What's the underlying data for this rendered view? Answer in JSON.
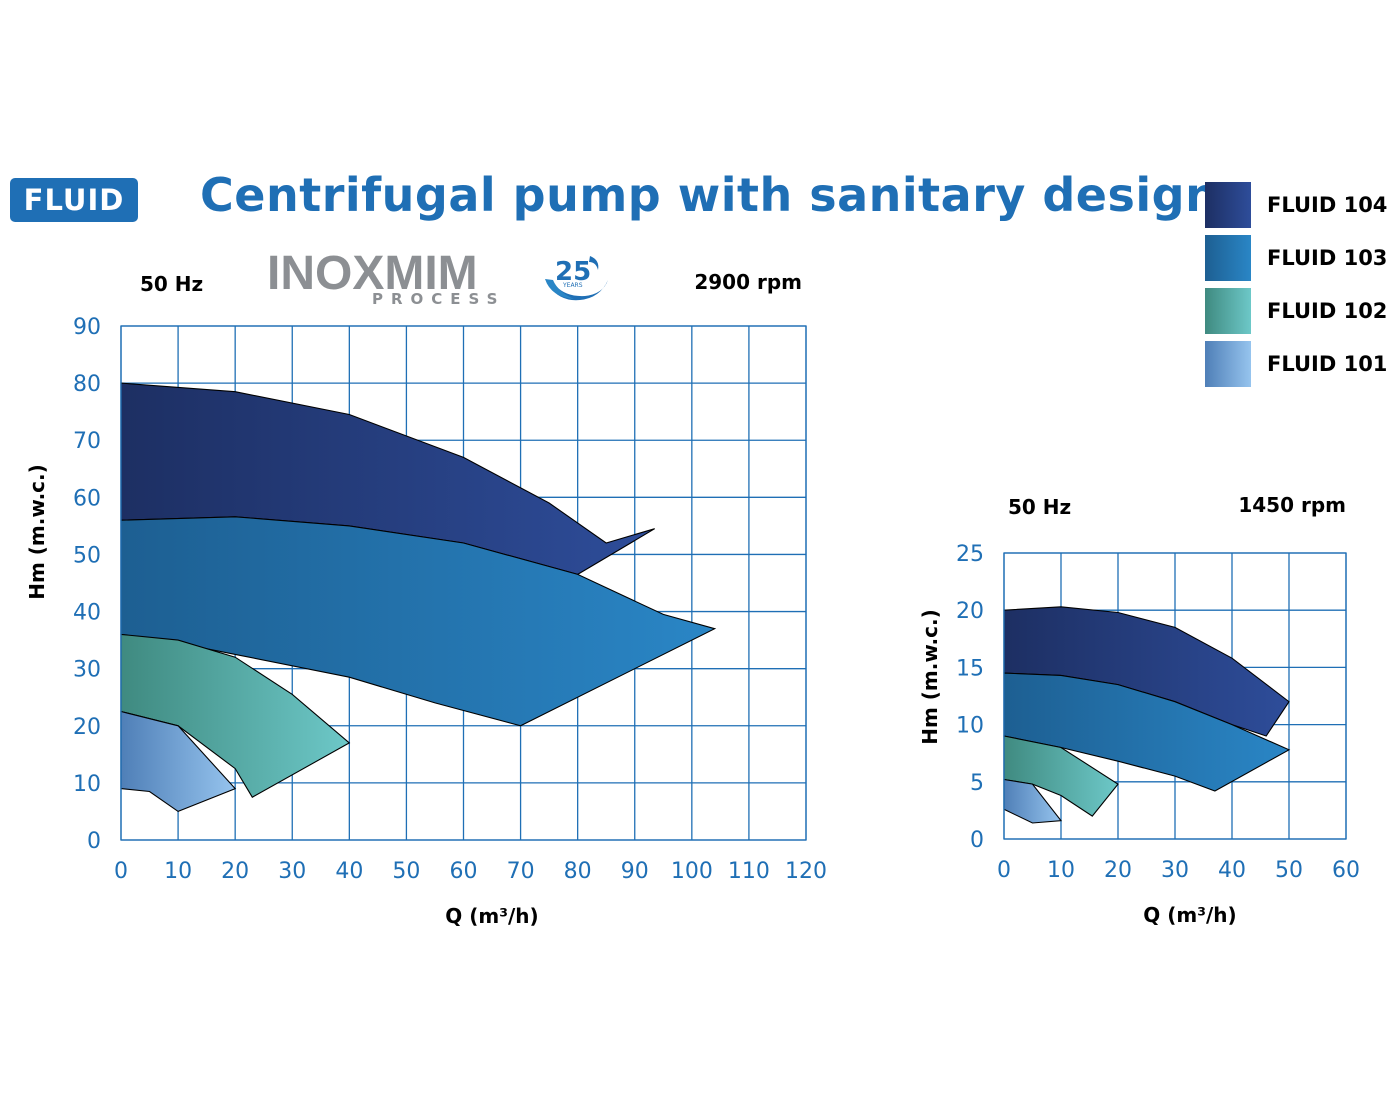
{
  "badge": "FLUID",
  "title": "Centrifugal pump with sanitary design",
  "logo": {
    "main": "INOXMIM",
    "sub": "PROCESS",
    "years": "25",
    "years_label": "YEARS"
  },
  "legend": [
    {
      "label": "FLUID 104",
      "color": "#22386f"
    },
    {
      "label": "FLUID 103",
      "color": "#1f6aa6"
    },
    {
      "label": "FLUID 102",
      "color": "#4fa8a4"
    },
    {
      "label": "FLUID 101",
      "color": "#7aaedf"
    }
  ],
  "chart_data": [
    {
      "type": "area",
      "frequency": "50 Hz",
      "speed": "2900 rpm",
      "xlabel": "Q (m³/h)",
      "ylabel": "Hm (m.w.c.)",
      "xlim": [
        0,
        120
      ],
      "ylim": [
        0,
        90
      ],
      "xticks": [
        0,
        10,
        20,
        30,
        40,
        50,
        60,
        70,
        80,
        90,
        100,
        110,
        120
      ],
      "yticks": [
        0,
        10,
        20,
        30,
        40,
        50,
        60,
        70,
        80,
        90
      ],
      "grid": true,
      "series": [
        {
          "name": "FLUID 104",
          "color_dark": "#1d2f63",
          "color_light": "#2e4d9a",
          "upper": [
            [
              0,
              80
            ],
            [
              20,
              78.5
            ],
            [
              40,
              74.5
            ],
            [
              60,
              67
            ],
            [
              75,
              59
            ],
            [
              85,
              52
            ],
            [
              93.5,
              54.5
            ]
          ],
          "lower": [
            [
              0,
              56
            ],
            [
              20,
              56.6
            ],
            [
              40,
              55
            ],
            [
              60,
              52
            ],
            [
              80,
              46.5
            ]
          ]
        },
        {
          "name": "FLUID 103",
          "color_dark": "#1d5f92",
          "color_light": "#2a86c6",
          "upper": [
            [
              0,
              56
            ],
            [
              20,
              56.6
            ],
            [
              40,
              55
            ],
            [
              60,
              52
            ],
            [
              80,
              46.5
            ],
            [
              95,
              39.5
            ],
            [
              104,
              37
            ]
          ],
          "lower": [
            [
              0,
              36
            ],
            [
              10,
              34.5
            ],
            [
              20,
              32.5
            ],
            [
              40,
              28.5
            ],
            [
              55,
              24
            ],
            [
              70,
              20
            ]
          ]
        },
        {
          "name": "FLUID 102",
          "color_dark": "#3f8a80",
          "color_light": "#6dc8c8",
          "upper": [
            [
              0,
              36
            ],
            [
              10,
              35
            ],
            [
              20,
              32
            ],
            [
              30,
              25.5
            ],
            [
              40,
              17
            ]
          ],
          "lower": [
            [
              0,
              22.5
            ],
            [
              10,
              20
            ],
            [
              20,
              12.5
            ],
            [
              23,
              7.5
            ]
          ]
        },
        {
          "name": "FLUID 101",
          "color_dark": "#4f7fb7",
          "color_light": "#96c4ee",
          "upper": [
            [
              0,
              22.5
            ],
            [
              10,
              20
            ],
            [
              20,
              9
            ]
          ],
          "lower": [
            [
              0,
              9
            ],
            [
              5,
              8.5
            ],
            [
              10,
              5
            ]
          ]
        }
      ]
    },
    {
      "type": "area",
      "frequency": "50 Hz",
      "speed": "1450 rpm",
      "xlabel": "Q (m³/h)",
      "ylabel": "Hm (m.w.c.)",
      "xlim": [
        0,
        60
      ],
      "ylim": [
        0,
        25
      ],
      "xticks": [
        0,
        10,
        20,
        30,
        40,
        50,
        60
      ],
      "yticks": [
        0,
        5,
        10,
        15,
        20,
        25
      ],
      "grid": true,
      "series": [
        {
          "name": "FLUID 104",
          "color_dark": "#1d2f63",
          "color_light": "#2e4d9a",
          "upper": [
            [
              0,
              20
            ],
            [
              10,
              20.3
            ],
            [
              20,
              19.8
            ],
            [
              30,
              18.5
            ],
            [
              40,
              15.8
            ],
            [
              50,
              12
            ]
          ],
          "lower": [
            [
              0,
              14.5
            ],
            [
              10,
              14.3
            ],
            [
              20,
              13.5
            ],
            [
              30,
              12
            ],
            [
              40,
              10
            ],
            [
              46,
              9
            ]
          ]
        },
        {
          "name": "FLUID 103",
          "color_dark": "#1d5f92",
          "color_light": "#2a86c6",
          "upper": [
            [
              0,
              14.5
            ],
            [
              10,
              14.3
            ],
            [
              20,
              13.5
            ],
            [
              30,
              12
            ],
            [
              40,
              10
            ],
            [
              50,
              7.8
            ]
          ],
          "lower": [
            [
              0,
              9
            ],
            [
              10,
              8
            ],
            [
              20,
              6.8
            ],
            [
              30,
              5.5
            ],
            [
              37,
              4.2
            ]
          ]
        },
        {
          "name": "FLUID 102",
          "color_dark": "#3f8a80",
          "color_light": "#6dc8c8",
          "upper": [
            [
              0,
              9
            ],
            [
              10,
              8
            ],
            [
              20,
              4.8
            ]
          ],
          "lower": [
            [
              0,
              5.2
            ],
            [
              5,
              4.8
            ],
            [
              10,
              3.8
            ],
            [
              15.5,
              2
            ]
          ]
        },
        {
          "name": "FLUID 101",
          "color_dark": "#4f7fb7",
          "color_light": "#96c4ee",
          "upper": [
            [
              0,
              5.2
            ],
            [
              5,
              4.8
            ],
            [
              10,
              1.6
            ]
          ],
          "lower": [
            [
              0,
              2.6
            ],
            [
              5,
              1.4
            ]
          ]
        }
      ]
    }
  ]
}
